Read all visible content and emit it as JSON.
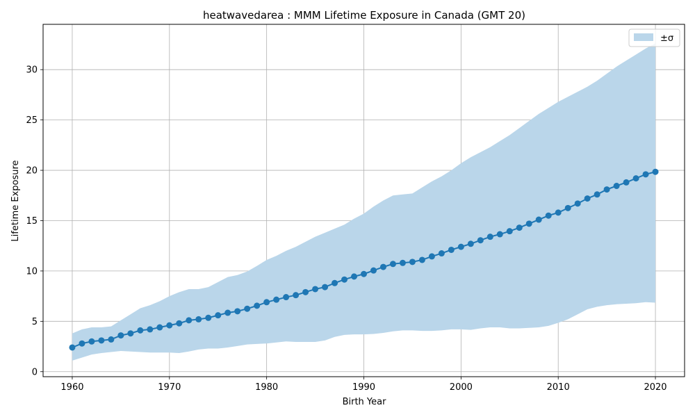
{
  "chart_data": {
    "type": "line",
    "title": "heatwavedarea : MMM Lifetime Exposure in Canada (GMT 20)",
    "xlabel": "Birth Year",
    "ylabel": "Lifetime Exposure",
    "xlim": [
      1957,
      2023
    ],
    "ylim": [
      -0.5,
      34.5
    ],
    "xticks": [
      1960,
      1970,
      1980,
      1990,
      2000,
      2010,
      2020
    ],
    "yticks": [
      0,
      5,
      10,
      15,
      20,
      25,
      30
    ],
    "grid": true,
    "legend_position": "top-right",
    "legend": [
      "±σ"
    ],
    "colors": {
      "line": "#1f77b4",
      "band": "#bad6ea"
    },
    "x": [
      1960,
      1961,
      1962,
      1963,
      1964,
      1965,
      1966,
      1967,
      1968,
      1969,
      1970,
      1971,
      1972,
      1973,
      1974,
      1975,
      1976,
      1977,
      1978,
      1979,
      1980,
      1981,
      1982,
      1983,
      1984,
      1985,
      1986,
      1987,
      1988,
      1989,
      1990,
      1991,
      1992,
      1993,
      1994,
      1995,
      1996,
      1997,
      1998,
      1999,
      2000,
      2001,
      2002,
      2003,
      2004,
      2005,
      2006,
      2007,
      2008,
      2009,
      2010,
      2011,
      2012,
      2013,
      2014,
      2015,
      2016,
      2017,
      2018,
      2019,
      2020
    ],
    "series": [
      {
        "values": [
          2.4,
          2.8,
          3.0,
          3.1,
          3.2,
          3.6,
          3.8,
          4.1,
          4.2,
          4.4,
          4.6,
          4.8,
          5.1,
          5.2,
          5.35,
          5.6,
          5.85,
          6.0,
          6.25,
          6.55,
          6.9,
          7.15,
          7.4,
          7.6,
          7.9,
          8.2,
          8.4,
          8.8,
          9.15,
          9.45,
          9.7,
          10.05,
          10.4,
          10.7,
          10.8,
          10.9,
          11.1,
          11.45,
          11.75,
          12.1,
          12.4,
          12.7,
          13.05,
          13.4,
          13.65,
          13.95,
          14.3,
          14.7,
          15.1,
          15.5,
          15.8,
          16.25,
          16.7,
          17.2,
          17.6,
          18.1,
          18.45,
          18.8,
          19.2,
          19.6,
          19.85
        ]
      }
    ],
    "band": {
      "name": "±σ",
      "lower": [
        1.1,
        1.4,
        1.7,
        1.85,
        1.95,
        2.05,
        2.0,
        1.95,
        1.9,
        1.9,
        1.9,
        1.85,
        2.0,
        2.2,
        2.3,
        2.3,
        2.4,
        2.55,
        2.7,
        2.75,
        2.8,
        2.9,
        3.0,
        2.95,
        2.95,
        2.95,
        3.1,
        3.45,
        3.65,
        3.7,
        3.7,
        3.75,
        3.85,
        4.0,
        4.1,
        4.1,
        4.05,
        4.05,
        4.1,
        4.2,
        4.2,
        4.15,
        4.3,
        4.4,
        4.4,
        4.3,
        4.3,
        4.35,
        4.4,
        4.55,
        4.85,
        5.2,
        5.7,
        6.2,
        6.45,
        6.6,
        6.7,
        6.75,
        6.8,
        6.9,
        6.85
      ],
      "upper": [
        3.8,
        4.2,
        4.4,
        4.4,
        4.5,
        5.1,
        5.7,
        6.3,
        6.6,
        7.0,
        7.5,
        7.9,
        8.2,
        8.2,
        8.4,
        8.9,
        9.4,
        9.6,
        9.95,
        10.5,
        11.1,
        11.5,
        12.0,
        12.4,
        12.9,
        13.4,
        13.8,
        14.2,
        14.6,
        15.2,
        15.7,
        16.4,
        17.0,
        17.5,
        17.6,
        17.7,
        18.3,
        18.9,
        19.4,
        20.0,
        20.7,
        21.3,
        21.8,
        22.3,
        22.9,
        23.5,
        24.2,
        24.9,
        25.6,
        26.2,
        26.8,
        27.3,
        27.8,
        28.3,
        28.9,
        29.6,
        30.3,
        30.9,
        31.5,
        32.1,
        32.6
      ]
    }
  }
}
